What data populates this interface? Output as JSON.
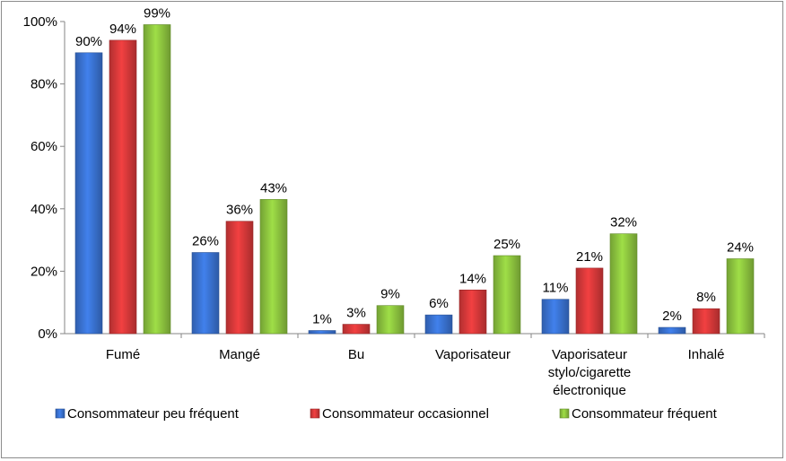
{
  "chart_data": {
    "type": "bar",
    "title": "",
    "xlabel": "",
    "ylabel": "",
    "ylim": [
      0,
      100
    ],
    "yticks": [
      "0%",
      "20%",
      "40%",
      "60%",
      "80%",
      "100%"
    ],
    "grid": false,
    "legend_position": "bottom",
    "categories": [
      [
        "Fumé"
      ],
      [
        "Mangé"
      ],
      [
        "Bu"
      ],
      [
        "Vaporisateur"
      ],
      [
        "Vaporisateur",
        "stylo/cigarette",
        "électronique"
      ],
      [
        "Inhalé"
      ]
    ],
    "series": [
      {
        "name": "Consommateur peu fréquent",
        "color": "#3a73d3",
        "values": [
          90,
          26,
          1,
          6,
          11,
          2
        ],
        "labels": [
          "90%",
          "26%",
          "1%",
          "6%",
          "11%",
          "2%"
        ]
      },
      {
        "name": "Consommateur occasionnel",
        "color": "#d8393a",
        "values": [
          94,
          36,
          3,
          14,
          21,
          8
        ],
        "labels": [
          "94%",
          "36%",
          "3%",
          "14%",
          "21%",
          "8%"
        ]
      },
      {
        "name": "Consommateur fréquent",
        "color": "#8ec63f",
        "values": [
          99,
          43,
          9,
          25,
          32,
          24
        ],
        "labels": [
          "99%",
          "43%",
          "9%",
          "25%",
          "32%",
          "24%"
        ]
      }
    ]
  }
}
